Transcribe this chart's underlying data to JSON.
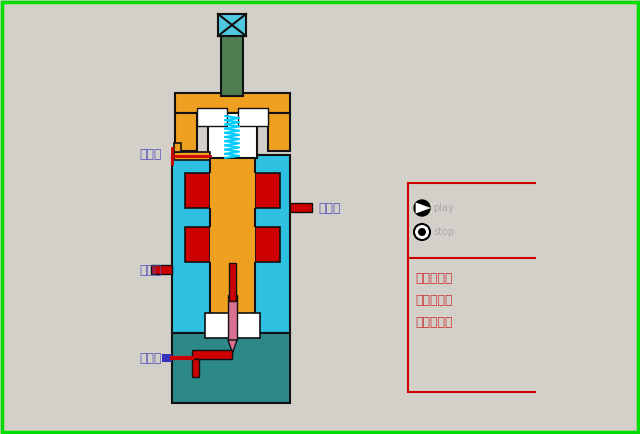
{
  "bg_color": "#d3d0c9",
  "border_color": "#00dd00",
  "orange": "#f0a020",
  "teal": "#2d8888",
  "light_blue": "#2ec0e0",
  "red": "#cc0000",
  "dark_green": "#4d7d50",
  "cyan_spring": "#00ccff",
  "pink": "#d87090",
  "dark_line": "#111111",
  "blue_port": "#3333bb",
  "white": "#ffffff",
  "label_color": "#5555bb",
  "red_text": "#cc3333",
  "gray_text": "#aaaaaa",
  "labels": {
    "xie": "泄油口",
    "chu": "出油口",
    "jin": "进油口",
    "kong": "控制口"
  },
  "right_labels": [
    "内控内泄式",
    "外控内泄式",
    "外控外泄式"
  ],
  "play_text": "play",
  "stop_text": "stop"
}
